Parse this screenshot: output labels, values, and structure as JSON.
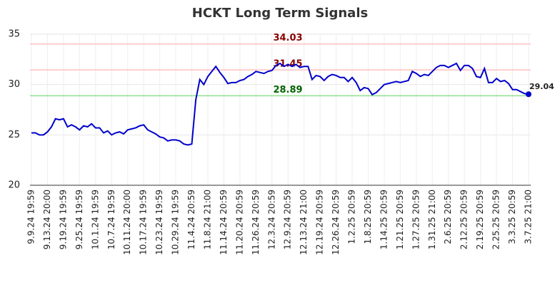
{
  "chart_data": {
    "type": "line",
    "title": "HCKT Long Term Signals",
    "categories": [
      "9.9.24 19:59",
      null,
      null,
      null,
      "9.13.24 20:00",
      null,
      null,
      null,
      "9.19.24 19:59",
      null,
      null,
      null,
      "9.25.24 19:59",
      null,
      null,
      null,
      "10.1.24 19:59",
      null,
      null,
      null,
      "10.7.24 19:59",
      null,
      null,
      null,
      "10.11.24 20:00",
      null,
      null,
      null,
      "10.17.24 19:59",
      null,
      null,
      null,
      "10.23.24 19:59",
      null,
      null,
      null,
      "10.29.24 19:59",
      null,
      null,
      null,
      "11.4.24 20:59",
      null,
      null,
      null,
      "11.8.24 21:00",
      null,
      null,
      null,
      "11.14.24 20:59",
      null,
      null,
      null,
      "11.20.24 20:59",
      null,
      null,
      null,
      "11.26.24 20:59",
      null,
      null,
      null,
      "12.3.24 20:59",
      null,
      null,
      null,
      "12.9.24 20:59",
      null,
      null,
      null,
      "12.13.24 21:00",
      null,
      null,
      null,
      "12.19.24 20:59",
      null,
      null,
      null,
      "12.26.24 20:59",
      null,
      null,
      null,
      "1.2.25 20:59",
      null,
      null,
      null,
      "1.8.25 20:59",
      null,
      null,
      null,
      "1.14.25 20:59",
      null,
      null,
      null,
      "1.21.25 20:59",
      null,
      null,
      null,
      "1.27.25 20:59",
      null,
      null,
      null,
      "1.31.25 21:00",
      null,
      null,
      null,
      "2.6.25 20:59",
      null,
      null,
      null,
      "2.12.25 20:59",
      null,
      null,
      null,
      "2.19.25 20:59",
      null,
      null,
      null,
      "2.25.25 20:59",
      null,
      null,
      null,
      "3.3.25 20:59",
      null,
      null,
      null,
      "3.7.25 21:00"
    ],
    "values": [
      25.2,
      25.2,
      25.0,
      25.0,
      25.3,
      25.8,
      26.6,
      26.5,
      26.6,
      25.8,
      26.0,
      25.8,
      25.5,
      25.9,
      25.8,
      26.1,
      25.7,
      25.7,
      25.2,
      25.4,
      25.0,
      25.2,
      25.3,
      25.1,
      25.5,
      25.6,
      25.7,
      25.9,
      26.0,
      25.5,
      25.3,
      25.1,
      24.8,
      24.7,
      24.4,
      24.5,
      24.5,
      24.4,
      24.1,
      24.0,
      24.1,
      28.5,
      30.5,
      30.0,
      30.8,
      31.3,
      31.8,
      31.2,
      30.7,
      30.1,
      30.2,
      30.2,
      30.4,
      30.5,
      30.8,
      31.0,
      31.3,
      31.2,
      31.1,
      31.3,
      31.4,
      31.9,
      32.1,
      31.8,
      32.0,
      31.8,
      32.0,
      31.7,
      31.8,
      31.8,
      30.5,
      30.9,
      30.8,
      30.4,
      30.8,
      31.0,
      30.9,
      30.7,
      30.7,
      30.3,
      30.7,
      30.2,
      29.4,
      29.7,
      29.6,
      29.0,
      29.2,
      29.6,
      30.0,
      30.1,
      30.2,
      30.3,
      30.2,
      30.3,
      30.4,
      31.3,
      31.1,
      30.8,
      31.0,
      30.9,
      31.3,
      31.7,
      31.9,
      31.9,
      31.7,
      31.9,
      32.1,
      31.4,
      31.9,
      31.9,
      31.6,
      30.8,
      30.7,
      31.6,
      30.2,
      30.2,
      30.6,
      30.3,
      30.4,
      30.1,
      29.5,
      29.5,
      29.3,
      29.1,
      29.04
    ],
    "color": "#0000cc",
    "reference_lines": [
      {
        "value": 34.03,
        "color": "#ffc0c0",
        "label_color": "#8b0000"
      },
      {
        "value": 31.45,
        "color": "#ffc0c0",
        "label_color": "#8b0000"
      },
      {
        "value": 28.89,
        "color": "#90e090",
        "label_color": "#006400"
      }
    ],
    "ylim": [
      20,
      35
    ],
    "yticks": [
      20,
      25,
      30,
      35
    ],
    "grid": true
  }
}
